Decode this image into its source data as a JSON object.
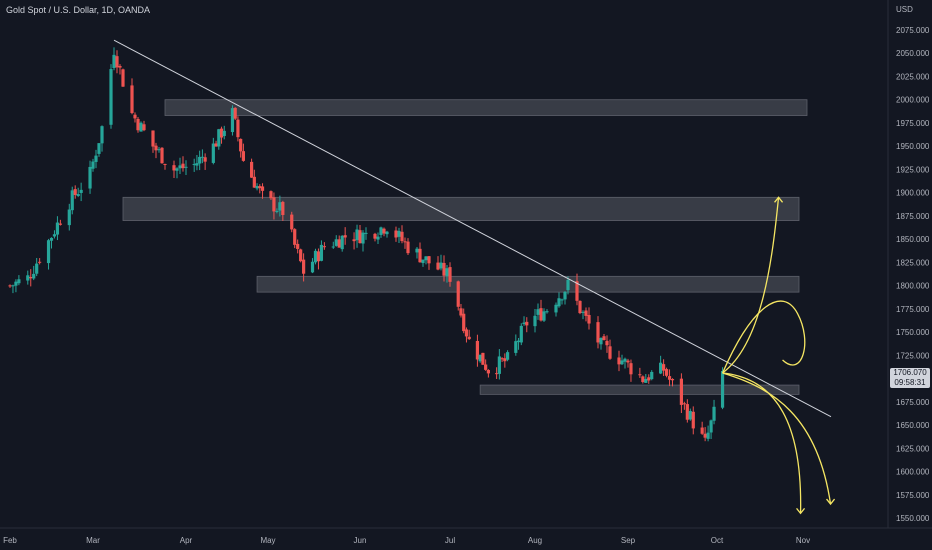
{
  "header": {
    "title": "Gold Spot / U.S. Dollar, 1D, OANDA"
  },
  "price_axis": {
    "unit_label": "USD"
  },
  "last_price": {
    "value": "1706.070",
    "countdown": "09:58:31"
  },
  "colors": {
    "background": "#131722",
    "up": "#26a69a",
    "down": "#ef5350",
    "zone": "#434651",
    "trendline": "#d1d4dc",
    "projection": "#f5e663",
    "axis_text": "#b2b5be"
  },
  "chart_data": {
    "type": "candlestick",
    "title": "Gold Spot / U.S. Dollar, 1D, OANDA",
    "ylabel": "USD",
    "ylim": [
      1540,
      2095
    ],
    "y_ticks": [
      "1550.000",
      "1575.000",
      "1600.000",
      "1625.000",
      "1650.000",
      "1675.000",
      "1700.000",
      "1725.000",
      "1750.000",
      "1775.000",
      "1800.000",
      "1825.000",
      "1850.000",
      "1875.000",
      "1900.000",
      "1925.000",
      "1950.000",
      "1975.000",
      "2000.000",
      "2025.000",
      "2050.000",
      "2075.000"
    ],
    "x_ticks": [
      "Feb",
      "Mar",
      "Apr",
      "May",
      "Jun",
      "Jul",
      "Aug",
      "Sep",
      "Oct",
      "Nov"
    ],
    "x_range": [
      "2022-02-01",
      "2022-11-10"
    ],
    "series": [
      {
        "name": "",
        "ohlc_close_path": [
          [
            "2022-02-01",
            1800
          ],
          [
            "2022-02-07",
            1808
          ],
          [
            "2022-02-14",
            1848
          ],
          [
            "2022-02-21",
            1890
          ],
          [
            "2022-02-28",
            1920
          ],
          [
            "2022-03-04",
            1970
          ],
          [
            "2022-03-08",
            2055
          ],
          [
            "2022-03-14",
            1985
          ],
          [
            "2022-03-21",
            1950
          ],
          [
            "2022-03-28",
            1925
          ],
          [
            "2022-04-04",
            1930
          ],
          [
            "2022-04-11",
            1950
          ],
          [
            "2022-04-18",
            1985
          ],
          [
            "2022-04-22",
            1935
          ],
          [
            "2022-04-29",
            1895
          ],
          [
            "2022-05-06",
            1880
          ],
          [
            "2022-05-13",
            1815
          ],
          [
            "2022-05-20",
            1842
          ],
          [
            "2022-05-27",
            1853
          ],
          [
            "2022-06-03",
            1855
          ],
          [
            "2022-06-10",
            1865
          ],
          [
            "2022-06-17",
            1842
          ],
          [
            "2022-06-24",
            1825
          ],
          [
            "2022-07-01",
            1810
          ],
          [
            "2022-07-08",
            1740
          ],
          [
            "2022-07-15",
            1710
          ],
          [
            "2022-07-22",
            1720
          ],
          [
            "2022-07-29",
            1760
          ],
          [
            "2022-08-05",
            1775
          ],
          [
            "2022-08-12",
            1800
          ],
          [
            "2022-08-16",
            1775
          ],
          [
            "2022-08-23",
            1735
          ],
          [
            "2022-08-30",
            1720
          ],
          [
            "2022-09-06",
            1700
          ],
          [
            "2022-09-13",
            1710
          ],
          [
            "2022-09-20",
            1670
          ],
          [
            "2022-09-27",
            1630
          ],
          [
            "2022-09-30",
            1662
          ],
          [
            "2022-10-03",
            1706
          ]
        ]
      }
    ],
    "zones": [
      {
        "low": 1983,
        "high": 2000,
        "from": "2022-03-25",
        "to": "2022-11-10"
      },
      {
        "low": 1870,
        "high": 1895,
        "from": "2022-03-11",
        "to": "2022-11-10"
      },
      {
        "low": 1793,
        "high": 1810,
        "from": "2022-04-27",
        "to": "2022-11-10"
      },
      {
        "low": 1683,
        "high": 1693,
        "from": "2022-07-12",
        "to": "2022-11-10"
      }
    ],
    "trendline": {
      "from": [
        "2022-03-08",
        2064
      ],
      "to": [
        "2022-11-10",
        1659
      ]
    },
    "grid": false
  }
}
